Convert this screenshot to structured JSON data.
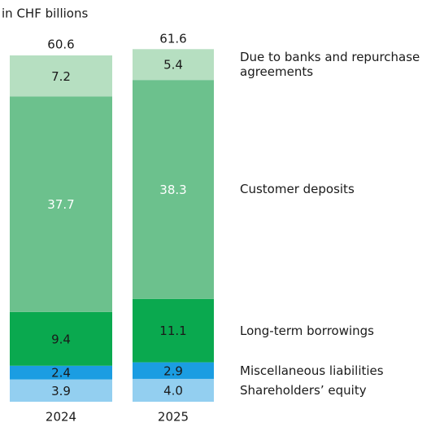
{
  "chart_data": {
    "type": "stacked_bar",
    "title": "in CHF billions",
    "categories": [
      "2024",
      "2025"
    ],
    "totals": [
      60.6,
      61.6
    ],
    "series": [
      {
        "name": "Shareholders’ equity",
        "color": "#93cff0",
        "label_color": "#1a1a1a",
        "values": [
          3.9,
          4.0
        ],
        "value_labels": [
          "3.9",
          "4.0"
        ]
      },
      {
        "name": "Miscellaneous liabilities",
        "color": "#1b9de2",
        "label_color": "#1a1a1a",
        "values": [
          2.4,
          2.9
        ]
      },
      {
        "name": "Long-term borrowings",
        "color": "#0aa94f",
        "label_color": "#1a1a1a",
        "values": [
          9.4,
          11.1
        ]
      },
      {
        "name": "Customer deposits",
        "color": "#6cc18d",
        "label_color": "#ffffff",
        "values": [
          37.7,
          38.3
        ]
      },
      {
        "name": "Due to banks and repurchase agreements",
        "color": "#b6dfc1",
        "label_color": "#1a1a1a",
        "values": [
          7.2,
          5.4
        ]
      }
    ]
  }
}
